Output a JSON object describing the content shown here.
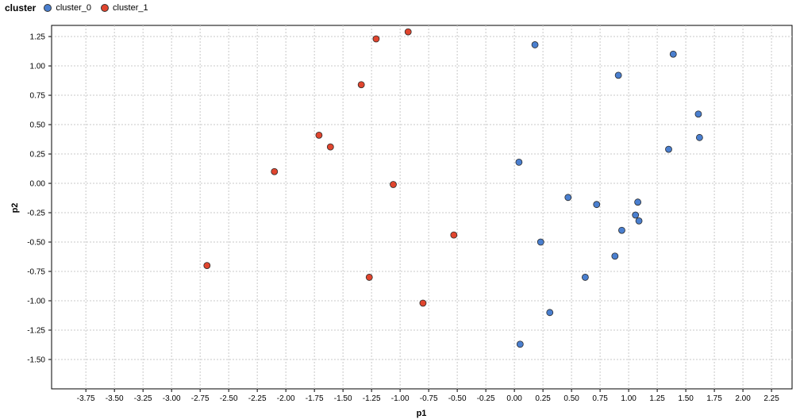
{
  "legend": {
    "title": "cluster",
    "items": [
      {
        "label": "cluster_0",
        "color": "#4a7fcf"
      },
      {
        "label": "cluster_1",
        "color": "#e0452e"
      }
    ]
  },
  "chart_data": {
    "type": "scatter",
    "title": "",
    "xlabel": "p1",
    "ylabel": "p2",
    "xlim": [
      -4.05,
      2.43
    ],
    "ylim": [
      -1.75,
      1.345
    ],
    "grid": true,
    "legend_placement": "top-left",
    "x_ticks": [
      "-3.75",
      "-3.50",
      "-3.25",
      "-3.00",
      "-2.75",
      "-2.50",
      "-2.25",
      "-2.00",
      "-1.75",
      "-1.50",
      "-1.25",
      "-1.00",
      "-0.75",
      "-0.50",
      "-0.25",
      "0.00",
      "0.25",
      "0.50",
      "0.75",
      "1.00",
      "1.25",
      "1.50",
      "1.75",
      "2.00",
      "2.25"
    ],
    "y_ticks": [
      "-1.50",
      "-1.25",
      "-1.00",
      "-0.75",
      "-0.50",
      "-0.25",
      "0.00",
      "0.25",
      "0.50",
      "0.75",
      "1.00",
      "1.25"
    ],
    "series": [
      {
        "name": "cluster_0",
        "color": "#4a7fcf",
        "points": [
          [
            0.18,
            1.18
          ],
          [
            1.39,
            1.1
          ],
          [
            0.91,
            0.92
          ],
          [
            1.61,
            0.59
          ],
          [
            1.62,
            0.39
          ],
          [
            1.35,
            0.29
          ],
          [
            0.04,
            0.18
          ],
          [
            0.47,
            -0.12
          ],
          [
            1.08,
            -0.16
          ],
          [
            0.72,
            -0.18
          ],
          [
            1.06,
            -0.27
          ],
          [
            1.09,
            -0.32
          ],
          [
            0.94,
            -0.4
          ],
          [
            0.23,
            -0.5
          ],
          [
            0.88,
            -0.62
          ],
          [
            0.62,
            -0.8
          ],
          [
            0.31,
            -1.1
          ],
          [
            0.05,
            -1.37
          ]
        ]
      },
      {
        "name": "cluster_1",
        "color": "#e0452e",
        "points": [
          [
            -0.93,
            1.29
          ],
          [
            -1.21,
            1.23
          ],
          [
            -1.34,
            0.84
          ],
          [
            -1.71,
            0.41
          ],
          [
            -1.61,
            0.31
          ],
          [
            -2.1,
            0.1
          ],
          [
            -1.06,
            -0.01
          ],
          [
            -0.53,
            -0.44
          ],
          [
            -2.69,
            -0.7
          ],
          [
            -1.27,
            -0.8
          ],
          [
            -0.8,
            -1.02
          ]
        ]
      }
    ]
  }
}
